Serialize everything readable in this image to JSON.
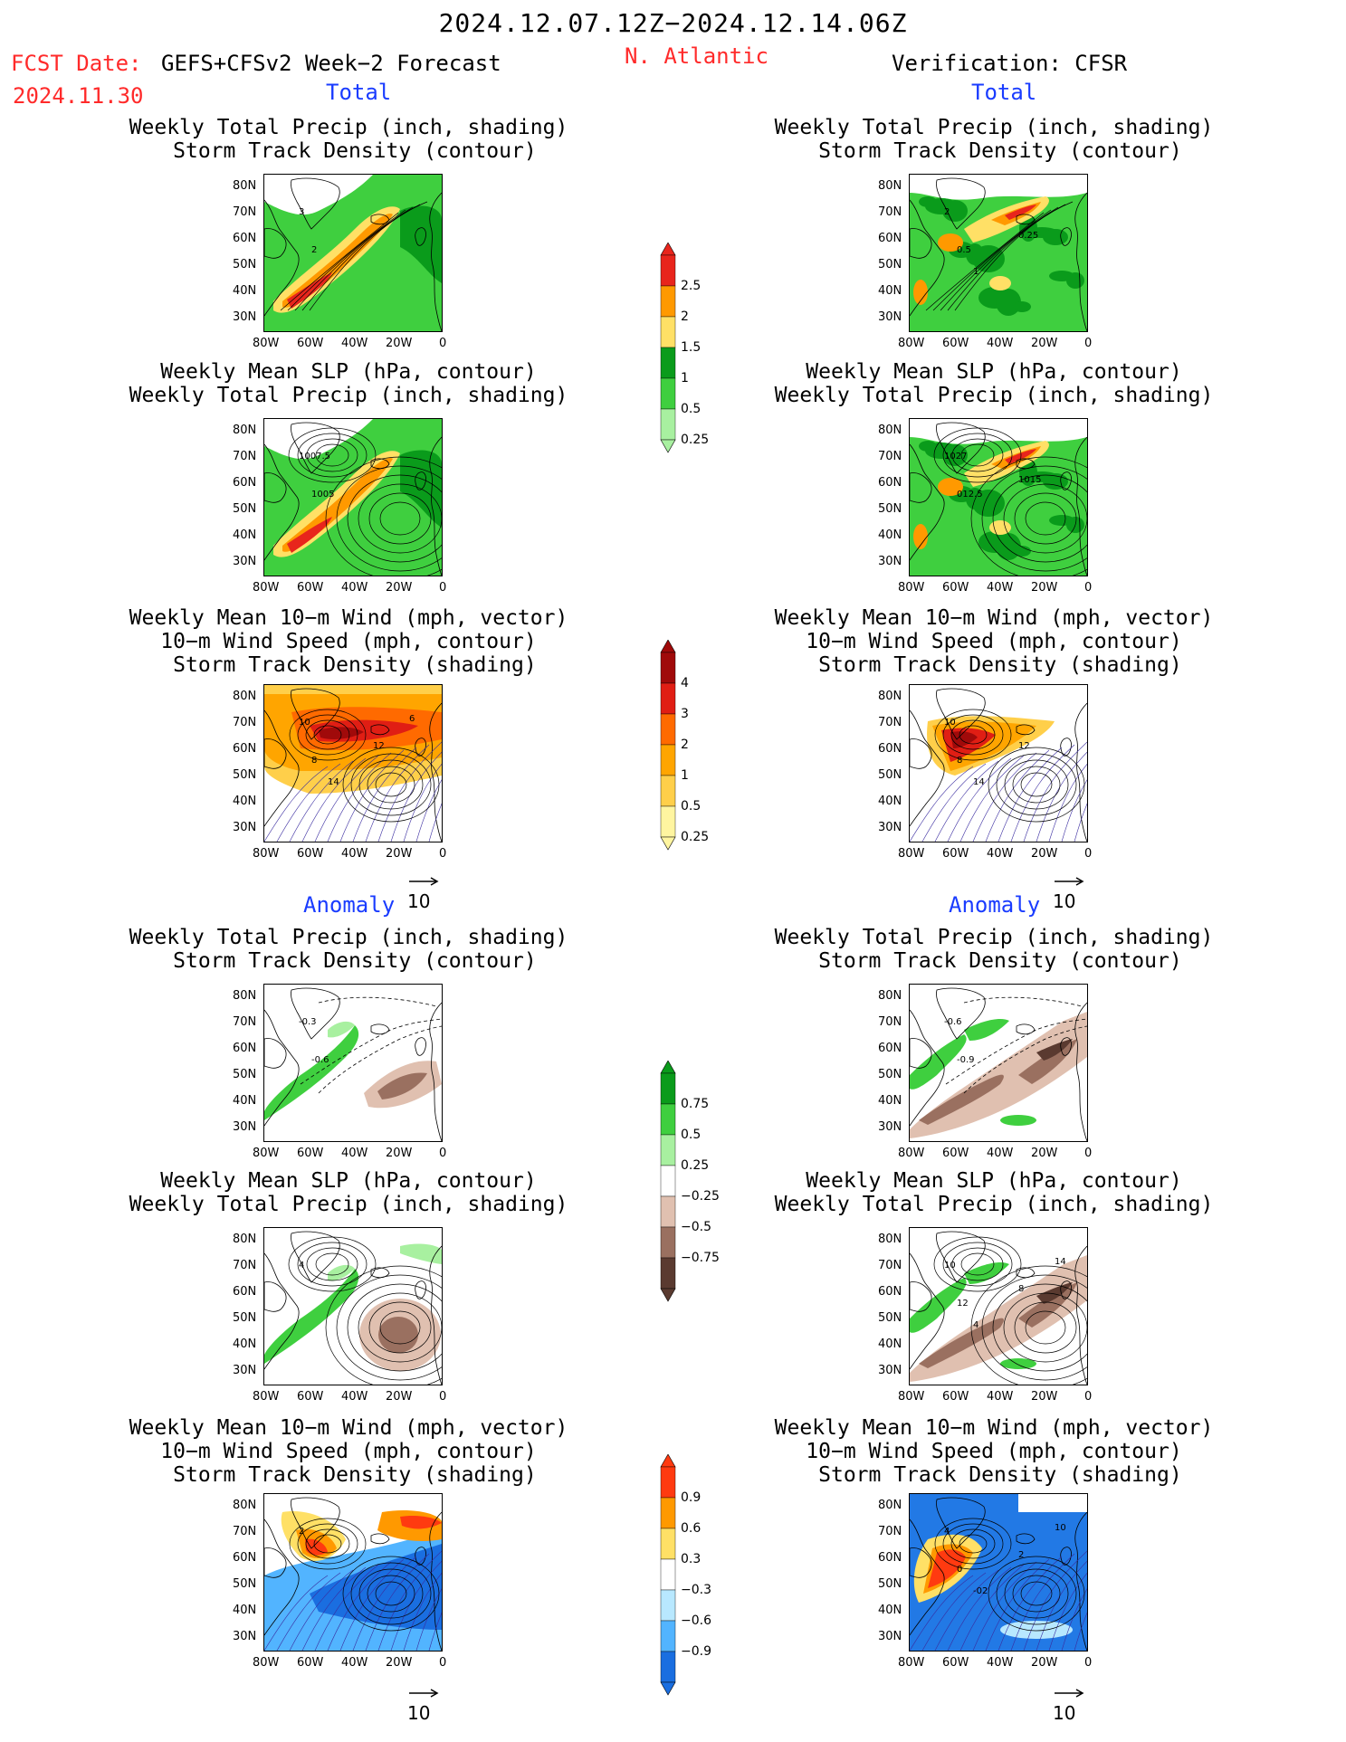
{
  "header": {
    "date_range": "2024.12.07.12Z−2024.12.14.06Z",
    "fcst_label": "FCST Date:",
    "fcst_model": "GEFS+CFSv2 Week−2 Forecast",
    "fcst_date": "2024.11.30",
    "region": "N. Atlantic",
    "verification": "Verification: CFSR"
  },
  "sections": {
    "total": "Total",
    "anomaly": "Anomaly"
  },
  "titles": {
    "precip_track": "Weekly Total Precip (inch, shading)\n Storm Track Density (contour)",
    "slp_precip": "Weekly Mean SLP (hPa, contour)\nWeekly Total Precip (inch, shading)",
    "wind": "Weekly Mean 10−m Wind (mph, vector)\n10−m Wind Speed (mph, contour)\n Storm Track Density (shading)"
  },
  "axes": {
    "lat": [
      "80N",
      "70N",
      "60N",
      "50N",
      "40N",
      "30N"
    ],
    "lon": [
      "80W",
      "60W",
      "40W",
      "20W",
      "0"
    ]
  },
  "vector_ref": "10",
  "colorbars": {
    "total_precip": {
      "labels": [
        "2.5",
        "2",
        "1.5",
        "1",
        "0.5",
        "0.25"
      ],
      "colors": [
        "#e8251c",
        "#ff9900",
        "#ffe066",
        "#0a9b1b",
        "#3fcf3f",
        "#a8f0a0"
      ]
    },
    "total_track": {
      "labels": [
        "4",
        "3",
        "2",
        "1",
        "0.5",
        "0.25"
      ],
      "colors": [
        "#a00a0a",
        "#e01e14",
        "#ff6a00",
        "#ffa500",
        "#ffcf4a",
        "#fff5a0"
      ]
    },
    "anom_precip": {
      "labels": [
        "0.75",
        "0.5",
        "0.25",
        "−0.25",
        "−0.5",
        "−0.75"
      ],
      "colors": [
        "#0a9b1b",
        "#3fcf3f",
        "#a8f0a0",
        "#ffffff",
        "#e0c0b0",
        "#9a7060",
        "#5a3a30"
      ]
    },
    "anom_track": {
      "labels": [
        "0.9",
        "0.6",
        "0.3",
        "−0.3",
        "−0.6",
        "−0.9"
      ],
      "colors": [
        "#ff3a10",
        "#ff9900",
        "#ffe066",
        "#ffffff",
        "#b8e8ff",
        "#52b4ff",
        "#1a6ee0"
      ]
    }
  },
  "contour_labels": {
    "r1l": [
      "3",
      "2"
    ],
    "r1r": [
      "2",
      "0.5",
      "0.25",
      "1"
    ],
    "r2l": [
      "1007.5",
      "1005"
    ],
    "r2r": [
      "1027",
      "012.5",
      "1015"
    ],
    "r3l": [
      "10",
      "8",
      "12",
      "14",
      "6"
    ],
    "r3r": [
      "10",
      "8",
      "12",
      "14"
    ],
    "r4l": [
      "-0.3",
      "-0.6"
    ],
    "r4r": [
      "-0.6",
      "-0.9"
    ],
    "r5l": [
      "4"
    ],
    "r5r": [
      "10",
      "12",
      "8",
      "4",
      "14"
    ],
    "r6l": [
      "2"
    ],
    "r6r": [
      "4",
      "0",
      "2",
      "-02",
      "10"
    ]
  }
}
